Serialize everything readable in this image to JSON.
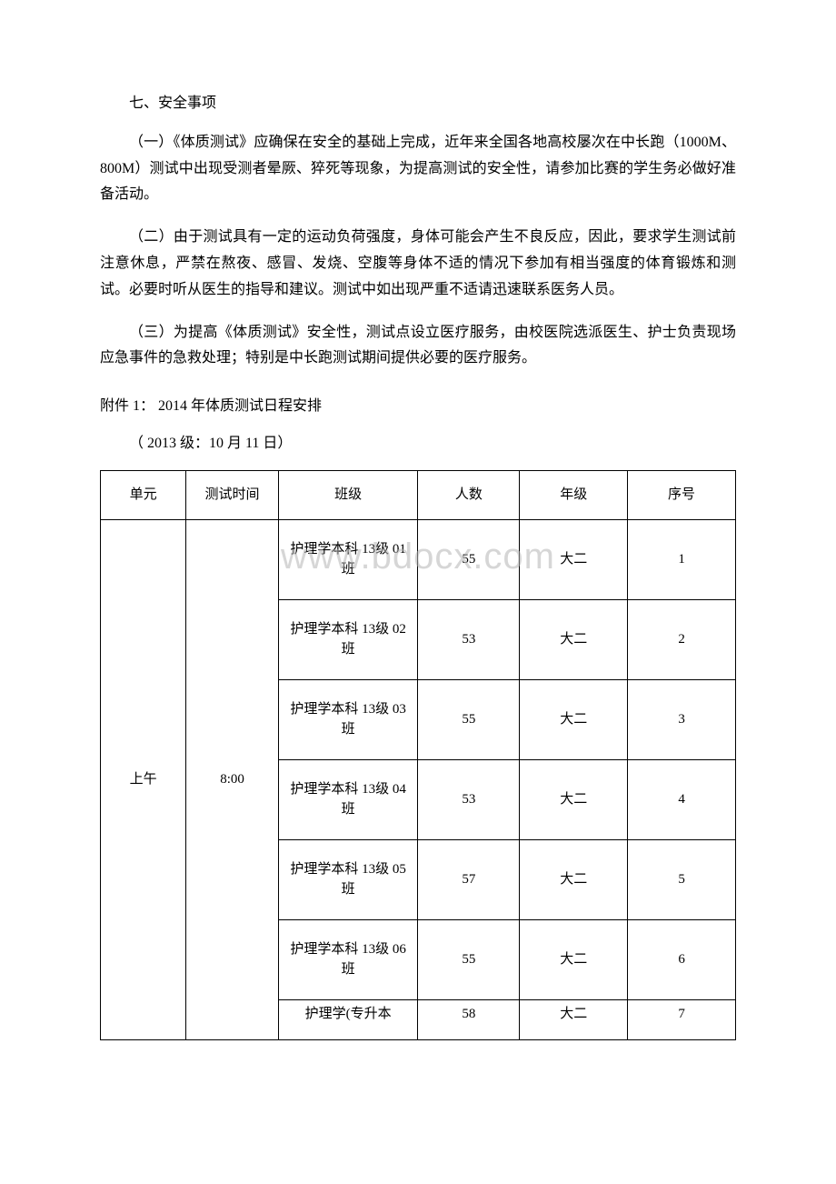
{
  "section7": {
    "heading": "七、安全事项",
    "p1": "（一）《体质测试》应确保在安全的基础上完成，近年来全国各地高校屡次在中长跑（1000M、800M）测试中出现受测者晕厥、猝死等现象，为提高测试的安全性，请参加比赛的学生务必做好准备活动。",
    "p2": "（二）由于测试具有一定的运动负荷强度，身体可能会产生不良反应，因此，要求学生测试前注意休息，严禁在熬夜、感冒、发烧、空腹等身体不适的情况下参加有相当强度的体育锻炼和测试。必要时听从医生的指导和建议。测试中如出现严重不适请迅速联系医务人员。",
    "p3": "（三）为提高《体质测试》安全性，测试点设立医疗服务，由校医院选派医生、护士负责现场应急事件的急救处理；特别是中长跑测试期间提供必要的医疗服务。"
  },
  "attachment": {
    "title": "附件 1：  2014 年体质测试日程安排",
    "date": "（ 2013 级：10 月 11 日）"
  },
  "table": {
    "headers": {
      "unit": "单元",
      "time": "测试时间",
      "class": "班级",
      "count": "人数",
      "grade": "年级",
      "index": "序号"
    },
    "unit_value": "上午",
    "time_value": "8:00",
    "rows": [
      {
        "class": "护理学本科 13级 01 班",
        "count": "55",
        "grade": "大二",
        "index": "1"
      },
      {
        "class": "护理学本科 13级 02 班",
        "count": "53",
        "grade": "大二",
        "index": "2"
      },
      {
        "class": "护理学本科 13级 03 班",
        "count": "55",
        "grade": "大二",
        "index": "3"
      },
      {
        "class": "护理学本科 13级 04 班",
        "count": "53",
        "grade": "大二",
        "index": "4"
      },
      {
        "class": "护理学本科 13级 05 班",
        "count": "57",
        "grade": "大二",
        "index": "5"
      },
      {
        "class": "护理学本科 13级 06 班",
        "count": "55",
        "grade": "大二",
        "index": "6"
      },
      {
        "class": "护理学(专升本",
        "count": "58",
        "grade": "大二",
        "index": "7"
      }
    ]
  },
  "watermark": "www.bdocx.com"
}
